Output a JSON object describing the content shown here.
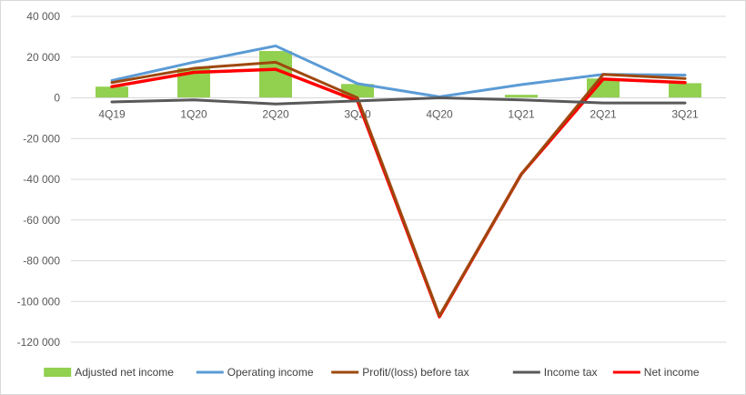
{
  "chart_data": {
    "type": "bar",
    "title": "",
    "xlabel": "",
    "ylabel": "",
    "categories": [
      "4Q19",
      "1Q20",
      "2Q20",
      "3Q20",
      "4Q20",
      "1Q21",
      "2Q21",
      "3Q21"
    ],
    "ylim": [
      -120000,
      40000
    ],
    "yticks": [
      40000,
      20000,
      0,
      -20000,
      -40000,
      -60000,
      -80000,
      -100000,
      -120000
    ],
    "ytick_labels": [
      "40 000",
      "20 000",
      "0",
      "-20 000",
      "-40 000",
      "-60 000",
      "-80 000",
      "-100 000",
      "-120 000"
    ],
    "grid": true,
    "legend_position": "bottom",
    "bar_series": {
      "name": "Adjusted net income",
      "color": "#92D050",
      "values": [
        5500,
        14500,
        23000,
        6800,
        0,
        1500,
        9500,
        7200
      ]
    },
    "line_series": [
      {
        "name": "Operating income",
        "color": "#5B9BD5",
        "values": [
          8500,
          17500,
          25500,
          7000,
          500,
          6500,
          11500,
          11200
        ]
      },
      {
        "name": "Profit/(loss) before tax",
        "color": "#9E480E",
        "values": [
          7500,
          14500,
          17500,
          0,
          -107000,
          -37500,
          11500,
          9500
        ]
      },
      {
        "name": "Income tax",
        "color": "#595959",
        "values": [
          -2000,
          -1000,
          -3000,
          -1500,
          0,
          -1000,
          -2500,
          -2500
        ]
      },
      {
        "name": "Net income",
        "color": "#FF0000",
        "values": [
          5500,
          12500,
          14000,
          -1500,
          -107500,
          -37500,
          9200,
          7500
        ]
      }
    ]
  }
}
